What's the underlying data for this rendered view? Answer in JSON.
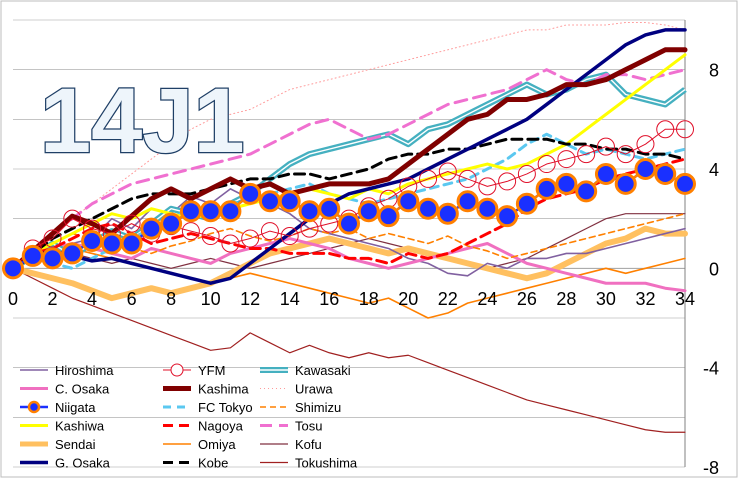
{
  "chart_data": {
    "type": "line",
    "title": "14J1",
    "xlabel": "",
    "ylabel": "",
    "xlim": [
      0,
      34
    ],
    "ylim": [
      -8,
      10
    ],
    "x_ticks": [
      0,
      2,
      4,
      6,
      8,
      10,
      12,
      14,
      16,
      18,
      20,
      22,
      24,
      26,
      28,
      30,
      32,
      34
    ],
    "y_ticks": [
      8,
      4,
      0,
      -4,
      -8
    ],
    "grid": "horizontal",
    "legend_position": "bottom-left",
    "series": [
      {
        "name": "Hiroshima",
        "color": "#8060a0",
        "values": [
          0,
          0.7,
          0.4,
          1.0,
          1.2,
          2.0,
          1.6,
          2.4,
          2.2,
          2.9,
          2.6,
          3.2,
          2.8,
          2.6,
          2.2,
          1.6,
          1.4,
          1.2,
          1.0,
          0.8,
          0.4,
          0.2,
          -0.2,
          -0.3,
          0.2,
          0.0,
          0.4,
          0.4,
          0.6,
          0.6,
          0.8,
          1.0,
          1.2,
          1.4,
          1.6
        ]
      },
      {
        "name": "YFM",
        "color": "#e0102a",
        "values": [
          0,
          0.8,
          1.2,
          2.0,
          1.6,
          1.4,
          1.8,
          1.4,
          1.7,
          1.5,
          1.3,
          1.0,
          1.2,
          1.5,
          1.3,
          1.6,
          1.8,
          2.0,
          2.5,
          2.8,
          3.3,
          3.6,
          3.9,
          3.6,
          3.3,
          3.5,
          3.8,
          4.2,
          4.4,
          4.6,
          4.9,
          4.6,
          5.0,
          5.6,
          5.6
        ]
      },
      {
        "name": "Kawasaki",
        "color": "#45b0c0",
        "values": [
          0,
          0.5,
          1.0,
          0.5,
          1.0,
          1.5,
          1.2,
          1.8,
          2.4,
          2.2,
          2.0,
          2.6,
          3.0,
          3.6,
          4.2,
          4.6,
          4.8,
          5.0,
          5.2,
          5.4,
          5.0,
          5.6,
          5.8,
          6.2,
          6.6,
          7.0,
          7.4,
          7.0,
          7.2,
          7.6,
          7.8,
          7.0,
          6.8,
          6.6,
          7.2
        ]
      },
      {
        "name": "C. Osaka",
        "color": "#f070c0",
        "values": [
          0,
          0.6,
          0.8,
          1.0,
          0.8,
          0.6,
          0.4,
          0.8,
          0.6,
          0.4,
          0.2,
          0.6,
          0.8,
          1.0,
          1.2,
          1.0,
          0.8,
          0.4,
          0.2,
          0.0,
          0.2,
          0.4,
          0.6,
          0.8,
          1.0,
          0.6,
          0.2,
          0.0,
          -0.2,
          -0.4,
          -0.6,
          -0.6,
          -0.6,
          -0.8,
          -0.9
        ]
      },
      {
        "name": "Kashima",
        "color": "#800000",
        "values": [
          0,
          0.7,
          1.4,
          2.1,
          1.8,
          1.4,
          2.1,
          2.8,
          3.2,
          2.8,
          3.2,
          3.6,
          3.2,
          3.4,
          3.0,
          3.2,
          3.4,
          3.4,
          3.4,
          3.6,
          4.2,
          4.8,
          5.4,
          6.0,
          6.2,
          6.8,
          6.8,
          7.0,
          7.4,
          7.4,
          7.6,
          8.0,
          8.4,
          8.8,
          8.8
        ]
      },
      {
        "name": "Urawa",
        "color": "#ff9a9a",
        "values": [
          0,
          0.8,
          1.4,
          2.0,
          2.6,
          3.2,
          3.8,
          4.4,
          5.0,
          5.6,
          6.0,
          6.2,
          6.4,
          6.8,
          7.2,
          7.4,
          7.6,
          7.8,
          8.0,
          8.2,
          8.4,
          8.6,
          8.8,
          9.0,
          9.2,
          9.4,
          9.6,
          9.6,
          9.8,
          9.8,
          9.8,
          9.9,
          9.9,
          9.8,
          9.6
        ]
      },
      {
        "name": "Niigata",
        "color": "#1a30ff",
        "values": [
          0,
          0.5,
          0.4,
          0.6,
          1.1,
          1.0,
          1.0,
          1.6,
          1.8,
          2.3,
          2.3,
          2.3,
          3.0,
          2.7,
          2.7,
          2.3,
          2.4,
          1.8,
          2.3,
          2.1,
          2.7,
          2.4,
          2.2,
          2.7,
          2.4,
          2.1,
          2.6,
          3.2,
          3.4,
          3.1,
          3.8,
          3.4,
          4.0,
          3.8,
          3.4
        ]
      },
      {
        "name": "FC Tokyo",
        "color": "#5bc8f0",
        "values": [
          0,
          0.5,
          0.2,
          0.0,
          0.4,
          0.8,
          1.2,
          1.6,
          2.0,
          2.4,
          2.2,
          2.6,
          2.8,
          3.0,
          3.2,
          3.4,
          3.0,
          2.8,
          2.6,
          2.8,
          3.0,
          3.2,
          3.4,
          3.6,
          4.0,
          4.4,
          5.0,
          5.4,
          5.0,
          4.6,
          4.8,
          4.6,
          4.4,
          4.6,
          4.8
        ]
      },
      {
        "name": "Shimizu",
        "color": "#ff8000",
        "values": [
          0,
          0.6,
          1.0,
          1.4,
          1.2,
          1.0,
          0.8,
          0.6,
          0.9,
          1.1,
          1.4,
          1.6,
          1.3,
          1.1,
          1.3,
          1.6,
          1.4,
          1.6,
          1.2,
          1.4,
          1.2,
          1.0,
          1.3,
          0.9,
          0.7,
          0.4,
          0.6,
          0.8,
          1.0,
          1.2,
          1.4,
          1.6,
          1.8,
          2.0,
          2.2
        ]
      },
      {
        "name": "Kashiwa",
        "color": "#ffff00",
        "values": [
          0,
          0.6,
          1.0,
          1.4,
          1.8,
          2.2,
          2.0,
          2.4,
          2.2,
          2.0,
          2.2,
          2.4,
          2.6,
          2.8,
          3.0,
          3.2,
          3.0,
          2.8,
          3.2,
          3.0,
          3.4,
          3.6,
          3.8,
          4.0,
          4.2,
          4.0,
          4.2,
          4.6,
          5.0,
          5.6,
          6.2,
          6.8,
          7.4,
          8.0,
          8.6
        ]
      },
      {
        "name": "Nagoya",
        "color": "#ff0000",
        "values": [
          0,
          0.6,
          0.8,
          1.2,
          1.6,
          1.8,
          1.4,
          1.0,
          1.2,
          1.4,
          1.2,
          1.0,
          0.8,
          0.8,
          0.6,
          0.6,
          0.6,
          0.4,
          0.4,
          0.2,
          0.6,
          0.4,
          0.6,
          1.0,
          1.4,
          1.8,
          2.4,
          2.8,
          3.0,
          3.2,
          3.6,
          3.8,
          4.0,
          4.2,
          4.4
        ]
      },
      {
        "name": "Tosu",
        "color": "#f070d0",
        "values": [
          0,
          0.8,
          1.4,
          2.0,
          2.6,
          3.0,
          3.4,
          3.6,
          3.8,
          4.0,
          4.2,
          4.4,
          4.6,
          5.0,
          5.4,
          5.8,
          6.0,
          5.6,
          5.2,
          5.4,
          5.8,
          6.2,
          6.6,
          6.8,
          7.0,
          7.2,
          7.6,
          8.0,
          7.6,
          7.4,
          7.8,
          7.8,
          7.6,
          7.8,
          8.0
        ]
      },
      {
        "name": "Sendai",
        "color": "#ffc060",
        "values": [
          0,
          -0.2,
          -0.4,
          -0.6,
          -0.9,
          -1.2,
          -1.0,
          -0.8,
          -1.0,
          -0.8,
          -0.6,
          -0.2,
          0.2,
          0.6,
          0.8,
          1.0,
          1.2,
          1.0,
          0.8,
          0.6,
          0.8,
          0.6,
          0.4,
          0.2,
          0.0,
          -0.2,
          -0.4,
          -0.2,
          0.2,
          0.6,
          1.0,
          1.2,
          1.6,
          1.4,
          1.4
        ]
      },
      {
        "name": "Omiya",
        "color": "#ff8000",
        "values": [
          0,
          0.4,
          0.6,
          0.8,
          0.6,
          0.4,
          0.2,
          0.0,
          -0.2,
          -0.4,
          -0.6,
          -0.4,
          -0.2,
          -0.4,
          -0.6,
          -0.8,
          -1.0,
          -1.2,
          -1.4,
          -1.2,
          -1.6,
          -2.0,
          -1.8,
          -1.4,
          -1.2,
          -1.0,
          -0.8,
          -0.6,
          -0.4,
          -0.2,
          0.0,
          -0.2,
          0.0,
          0.2,
          0.4
        ]
      },
      {
        "name": "Kofu",
        "color": "#803040",
        "values": [
          0,
          0.4,
          0.2,
          0.6,
          0.4,
          0.2,
          0.4,
          0.2,
          0.0,
          0.2,
          0.4,
          0.2,
          0.0,
          0.2,
          0.4,
          0.6,
          0.8,
          1.0,
          1.2,
          1.0,
          0.8,
          0.6,
          0.4,
          0.2,
          0.0,
          0.2,
          0.4,
          0.8,
          1.2,
          1.6,
          2.0,
          2.2,
          2.2,
          2.2,
          2.2
        ]
      },
      {
        "name": "G. Osaka",
        "color": "#000080",
        "values": [
          0,
          0.5,
          0.7,
          0.5,
          0.3,
          0.4,
          0.2,
          0.0,
          -0.2,
          -0.4,
          -0.6,
          -0.4,
          0.2,
          0.8,
          1.4,
          2.0,
          2.6,
          3.0,
          3.2,
          3.4,
          3.6,
          4.0,
          4.4,
          4.8,
          5.2,
          5.6,
          6.0,
          6.6,
          7.2,
          7.8,
          8.4,
          9.0,
          9.4,
          9.6,
          9.6
        ]
      },
      {
        "name": "Kobe",
        "color": "#000000",
        "values": [
          0,
          0.6,
          1.2,
          1.6,
          2.0,
          2.4,
          2.8,
          3.0,
          3.0,
          3.0,
          3.2,
          3.4,
          3.6,
          3.6,
          3.8,
          3.8,
          3.6,
          3.8,
          4.0,
          4.4,
          4.6,
          4.6,
          4.8,
          4.8,
          5.0,
          5.2,
          5.2,
          5.2,
          5.0,
          5.0,
          4.8,
          4.8,
          4.6,
          4.6,
          4.4
        ]
      },
      {
        "name": "Tokushima",
        "color": "#a02020",
        "values": [
          0,
          -0.4,
          -0.8,
          -1.2,
          -1.5,
          -1.8,
          -2.1,
          -2.4,
          -2.7,
          -3.0,
          -3.3,
          -3.2,
          -2.6,
          -3.0,
          -3.4,
          -3.1,
          -3.4,
          -3.6,
          -3.4,
          -3.6,
          -3.5,
          -3.8,
          -4.1,
          -4.4,
          -4.7,
          -5.0,
          -5.3,
          -5.5,
          -5.7,
          -5.9,
          -6.1,
          -6.3,
          -6.5,
          -6.6,
          -6.6
        ]
      }
    ]
  }
}
